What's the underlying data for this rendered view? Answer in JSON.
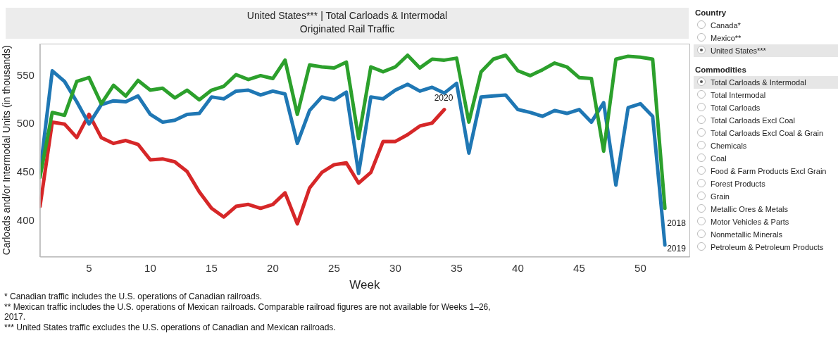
{
  "chart_data": {
    "type": "line",
    "title": "United States*** | Total Carloads & Intermodal",
    "subtitle": "Originated Rail Traffic",
    "xlabel": "Week",
    "ylabel": "Carloads and/or Intermodal Units (in thousands)",
    "x": [
      1,
      2,
      3,
      4,
      5,
      6,
      7,
      8,
      9,
      10,
      11,
      12,
      13,
      14,
      15,
      16,
      17,
      18,
      19,
      20,
      21,
      22,
      23,
      24,
      25,
      26,
      27,
      28,
      29,
      30,
      31,
      32,
      33,
      34,
      35,
      36,
      37,
      38,
      39,
      40,
      41,
      42,
      43,
      44,
      45,
      46,
      47,
      48,
      49,
      50,
      51,
      52
    ],
    "series": [
      {
        "name": "2018",
        "color": "#2ca02c",
        "values": [
          445,
          512,
          509,
          544,
          548,
          521,
          540,
          529,
          545,
          535,
          537,
          527,
          535,
          525,
          535,
          539,
          551,
          546,
          550,
          547,
          566,
          510,
          561,
          559,
          558,
          564,
          485,
          559,
          554,
          559,
          571,
          558,
          567,
          566,
          568,
          502,
          554,
          567,
          571,
          555,
          550,
          556,
          563,
          559,
          548,
          547,
          472,
          567,
          570,
          569,
          567,
          413
        ]
      },
      {
        "name": "2019",
        "color": "#1f77b4",
        "values": [
          450,
          555,
          544,
          523,
          500,
          520,
          524,
          523,
          529,
          510,
          502,
          504,
          510,
          511,
          528,
          526,
          534,
          535,
          530,
          534,
          531,
          480,
          514,
          528,
          525,
          533,
          449,
          528,
          526,
          535,
          541,
          534,
          538,
          532,
          542,
          470,
          528,
          529,
          530,
          515,
          512,
          508,
          514,
          511,
          515,
          502,
          522,
          437,
          517,
          521,
          508,
          375
        ]
      },
      {
        "name": "2020",
        "color": "#d62728",
        "values": [
          415,
          502,
          500,
          486,
          510,
          486,
          480,
          483,
          479,
          463,
          464,
          461,
          451,
          430,
          413,
          404,
          415,
          417,
          413,
          417,
          429,
          397,
          434,
          450,
          458,
          460,
          439,
          450,
          482,
          482,
          489,
          498,
          501,
          515,
          null,
          null,
          null,
          null,
          null,
          null,
          null,
          null,
          null,
          null,
          null,
          null,
          null,
          null,
          null,
          null,
          null,
          null
        ]
      }
    ],
    "xlim": [
      1,
      54
    ],
    "xticks": [
      5,
      10,
      15,
      20,
      25,
      30,
      35,
      40,
      45,
      50
    ],
    "ylim": [
      363,
      583
    ],
    "yticks": [
      400,
      450,
      500,
      550
    ],
    "grid": false,
    "legend": false,
    "marker": "none",
    "line_style": "solid",
    "annotations": [
      "* Canadian traffic includes the U.S. operations of Canadian railroads.",
      "** Mexican traffic includes the U.S. operations of Mexican railroads. Comparable railroad figures are not available for Weeks 1–26, 2017.",
      "*** United States traffic excludes the U.S. operations of Canadian and Mexican railroads.",
      "Country",
      "Canada*",
      "Mexico**",
      "United States***",
      "Commodities",
      "Total Carloads & Intermodal",
      "Total Intermodal",
      "Total Carloads",
      "Total Carloads Excl Coal",
      "Total Carloads Excl Coal & Grain",
      "Chemicals",
      "Coal",
      "Food & Farm Products Excl Grain",
      "Forest Products",
      "Grain",
      "Metallic Ores & Metals",
      "Motor Vehicles & Parts",
      "Nonmetallic Minerals",
      "Petroleum & Petroleum Products"
    ]
  }
}
